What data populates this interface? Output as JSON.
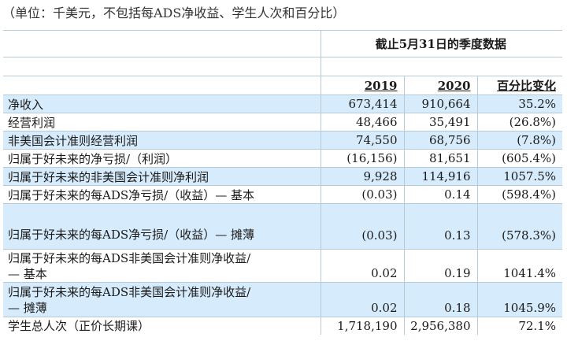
{
  "note": "（单位：千美元，不包括每ADS净收益、学生人次和百分比）",
  "period_header": "截止5月31日的季度数据",
  "columns": [
    "2019",
    "2020",
    "百分比变化"
  ],
  "rows": [
    {
      "label": "净收入",
      "v2019": "673,414",
      "v2020": "910,664",
      "change": "35.2%"
    },
    {
      "label": "经营利润",
      "v2019": "48,466",
      "v2020": "35,491",
      "change": "(26.8%)"
    },
    {
      "label": "非美国会计准则经营利润",
      "v2019": "74,550",
      "v2020": "68,756",
      "change": "(7.8%)"
    },
    {
      "label": "归属于好未来的净亏损/（利润）",
      "v2019": "(16,156)",
      "v2020": "81,651",
      "change": "(605.4%)"
    },
    {
      "label": "归属于好未来的非美国会计准则净利润",
      "v2019": "9,928",
      "v2020": "114,916",
      "change": "1057.5%"
    },
    {
      "label": "归属于好未来的每ADS净亏损/（收益）— 基本",
      "v2019": "(0.03)",
      "v2020": "0.14",
      "change": "(598.4%)"
    },
    {
      "label": "归属于好未来的每ADS净亏损/（收益）— 摊薄",
      "v2019": "(0.03)",
      "v2020": "0.13",
      "change": "(578.3%)"
    },
    {
      "label_line1": "归属于好未来的每ADS非美国会计准则净收益/",
      "label_line2": "— 基本",
      "v2019": "0.02",
      "v2020": "0.19",
      "change": "1041.4%"
    },
    {
      "label_line1": "归属于好未来的每ADS非美国会计准则净收益/",
      "label_line2": "— 摊薄",
      "v2019": "0.02",
      "v2020": "0.18",
      "change": "1045.9%"
    },
    {
      "label": "学生总人次（正价长期课）",
      "v2019": "1,718,190",
      "v2020": "2,956,380",
      "change": "72.1%"
    }
  ],
  "colors": {
    "highlight_row": "#d6ebfb",
    "border": "#b8c9d6"
  }
}
